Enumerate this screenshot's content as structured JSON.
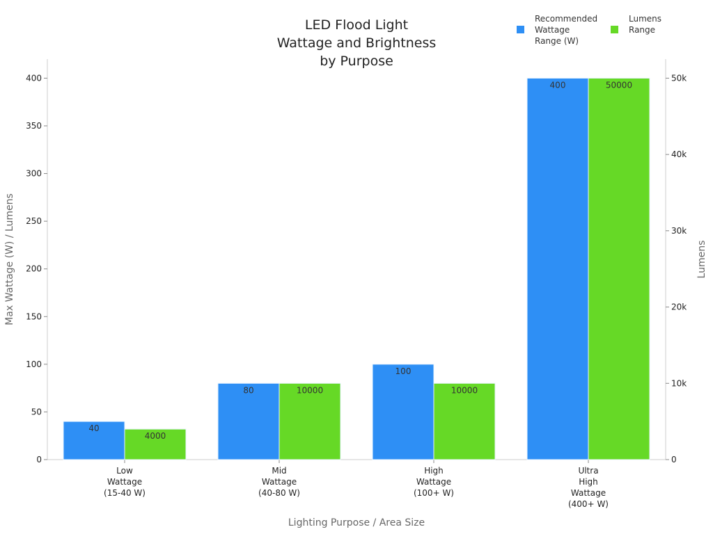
{
  "chart_data": {
    "type": "bar",
    "title": [
      "LED Flood Light",
      "Wattage and Brightness",
      "by Purpose"
    ],
    "xlabel": "Lighting Purpose / Area Size",
    "ylabel": "Max Wattage (W) / Lumens",
    "y2label": "Lumens",
    "categories": [
      [
        "Low",
        "Wattage",
        "(15-40 W)"
      ],
      [
        "Mid",
        "Wattage",
        "(40-80 W)"
      ],
      [
        "High",
        "Wattage",
        "(100+ W)"
      ],
      [
        "Ultra",
        "High",
        "Wattage",
        "(400+ W)"
      ]
    ],
    "series": [
      {
        "name": [
          "Recommended",
          "Wattage",
          "Range (W)"
        ],
        "values": [
          40,
          80,
          100,
          400
        ],
        "axis": "left",
        "color": "#2e8ff5"
      },
      {
        "name": [
          "Lumens",
          "Range"
        ],
        "values": [
          4000,
          10000,
          10000,
          50000
        ],
        "axis": "right",
        "color": "#66d926"
      }
    ],
    "ylim": [
      0,
      420
    ],
    "y2lim": [
      0,
      52500
    ],
    "yticks": [
      0,
      50,
      100,
      150,
      200,
      250,
      300,
      350,
      400
    ],
    "y2ticks": [
      {
        "v": 0,
        "l": "0"
      },
      {
        "v": 10000,
        "l": "10k"
      },
      {
        "v": 20000,
        "l": "20k"
      },
      {
        "v": 30000,
        "l": "30k"
      },
      {
        "v": 40000,
        "l": "40k"
      },
      {
        "v": 50000,
        "l": "50k"
      }
    ],
    "grid": false,
    "legend": "top-right"
  }
}
